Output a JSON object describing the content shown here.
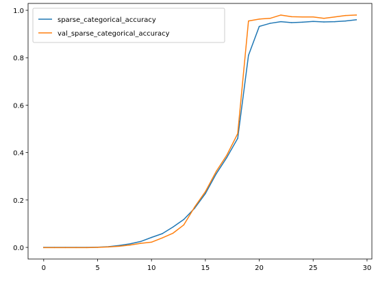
{
  "chart_data": {
    "type": "line",
    "title": "",
    "xlabel": "",
    "ylabel": "",
    "xlim": [
      -1.45,
      30.45
    ],
    "ylim": [
      -0.049,
      1.029
    ],
    "xticks": [
      0,
      5,
      10,
      15,
      20,
      25,
      30
    ],
    "yticks": [
      0.0,
      0.2,
      0.4,
      0.6,
      0.8,
      1.0
    ],
    "xtick_labels": [
      "0",
      "5",
      "10",
      "15",
      "20",
      "25",
      "30"
    ],
    "ytick_labels": [
      "0.0",
      "0.2",
      "0.4",
      "0.6",
      "0.8",
      "1.0"
    ],
    "grid": false,
    "legend_position": "upper-left",
    "x": [
      0,
      1,
      2,
      3,
      4,
      5,
      6,
      7,
      8,
      9,
      10,
      11,
      12,
      13,
      14,
      15,
      16,
      17,
      18,
      19,
      20,
      21,
      22,
      23,
      24,
      25,
      26,
      27,
      28,
      29
    ],
    "series": [
      {
        "name": "sparse_categorical_accuracy",
        "color": "#1f77b4",
        "values": [
          0.0,
          0.0,
          0.0,
          0.0,
          0.0,
          0.001,
          0.003,
          0.008,
          0.015,
          0.025,
          0.042,
          0.058,
          0.086,
          0.118,
          0.165,
          0.227,
          0.31,
          0.38,
          0.46,
          0.81,
          0.932,
          0.945,
          0.952,
          0.948,
          0.95,
          0.953,
          0.951,
          0.952,
          0.955,
          0.96
        ]
      },
      {
        "name": "val_sparse_categorical_accuracy",
        "color": "#ff7f0e",
        "values": [
          -0.001,
          -0.001,
          -0.001,
          -0.001,
          -0.001,
          0.0,
          0.002,
          0.005,
          0.01,
          0.017,
          0.022,
          0.04,
          0.06,
          0.095,
          0.17,
          0.235,
          0.32,
          0.39,
          0.48,
          0.955,
          0.963,
          0.966,
          0.98,
          0.973,
          0.972,
          0.972,
          0.966,
          0.972,
          0.978,
          0.98
        ]
      }
    ]
  }
}
